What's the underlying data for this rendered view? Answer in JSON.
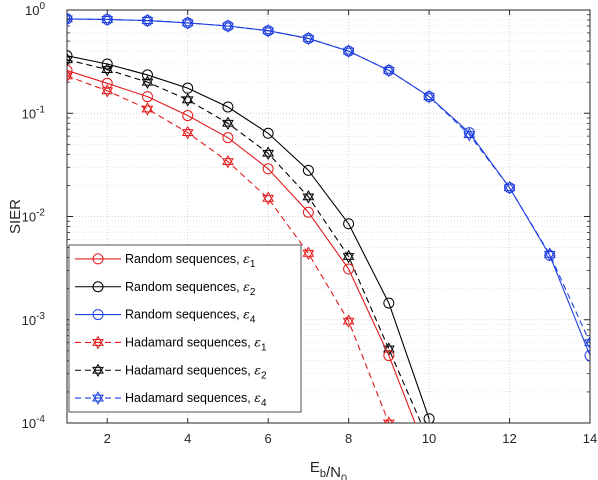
{
  "chart_data": {
    "type": "line",
    "xlabel": "E_b/N_0",
    "ylabel": "SIER",
    "xlim": [
      1,
      14
    ],
    "ylim": [
      0.0001,
      1
    ],
    "yscale": "log",
    "grid": "major and minor, dotted",
    "legend_placement": "bottom-left",
    "x_ticks": [
      2,
      4,
      6,
      8,
      10,
      12,
      14
    ],
    "y_ticks": [
      {
        "value": 0.0001,
        "base": "10",
        "exp": "-4"
      },
      {
        "value": 0.001,
        "base": "10",
        "exp": "-3"
      },
      {
        "value": 0.01,
        "base": "10",
        "exp": "-2"
      },
      {
        "value": 0.1,
        "base": "10",
        "exp": "-1"
      },
      {
        "value": 1,
        "base": "10",
        "exp": "0"
      }
    ],
    "series": [
      {
        "name": "Random sequences, ε1",
        "label_main": "Random sequences, ",
        "label_eps": "ε",
        "label_sub": "1",
        "color": "#e31a1c",
        "dash": "solid",
        "marker": "circle",
        "x": [
          1,
          2,
          3,
          4,
          5,
          6,
          7,
          8,
          9,
          9.65
        ],
        "y": [
          0.26,
          0.195,
          0.145,
          0.095,
          0.058,
          0.029,
          0.011,
          0.0031,
          0.00045,
          0.0001
        ],
        "marker_count": 9
      },
      {
        "name": "Random sequences, ε2",
        "label_main": "Random sequences, ",
        "label_eps": "ε",
        "label_sub": "2",
        "color": "#000000",
        "dash": "solid",
        "marker": "circle",
        "x": [
          1,
          2,
          3,
          4,
          5,
          6,
          7,
          8,
          9,
          10
        ],
        "y": [
          0.36,
          0.3,
          0.235,
          0.175,
          0.115,
          0.064,
          0.028,
          0.0085,
          0.00145,
          0.00011
        ],
        "marker_count": 10
      },
      {
        "name": "Random sequences, ε4",
        "label_main": "Random sequences, ",
        "label_eps": "ε",
        "label_sub": "4",
        "color": "#1f3fe0",
        "dash": "solid",
        "marker": "circle",
        "x": [
          1,
          2,
          3,
          4,
          5,
          6,
          7,
          8,
          9,
          10,
          11,
          12,
          13,
          14
        ],
        "y": [
          0.82,
          0.81,
          0.79,
          0.75,
          0.7,
          0.63,
          0.53,
          0.4,
          0.26,
          0.145,
          0.065,
          0.019,
          0.0042,
          0.00045
        ],
        "marker_count": 14
      },
      {
        "name": "Hadamard sequences, ε1",
        "label_main": "Hadamard sequences,  ",
        "label_eps": "ε",
        "label_sub": "1",
        "color": "#e31a1c",
        "dash": "dashed",
        "marker": "hexagram",
        "x": [
          1,
          2,
          3,
          4,
          5,
          6,
          7,
          8,
          9,
          9.2
        ],
        "y": [
          0.23,
          0.165,
          0.11,
          0.065,
          0.034,
          0.015,
          0.0044,
          0.00097,
          0.0001,
          7.5e-05
        ],
        "marker_count": 9
      },
      {
        "name": "Hadamard sequences, ε2",
        "label_main": "Hadamard sequences,  ",
        "label_eps": "ε",
        "label_sub": "2",
        "color": "#000000",
        "dash": "dashed",
        "marker": "hexagram",
        "x": [
          1,
          2,
          3,
          4,
          5,
          6,
          7,
          8,
          9,
          9.8
        ],
        "y": [
          0.33,
          0.265,
          0.2,
          0.135,
          0.08,
          0.041,
          0.0155,
          0.0041,
          0.00052,
          0.0001
        ],
        "marker_count": 9
      },
      {
        "name": "Hadamard sequences, ε4",
        "label_main": "Hadamard sequences,  ",
        "label_eps": "ε",
        "label_sub": "4",
        "color": "#1f3fe0",
        "dash": "dashed",
        "marker": "hexagram",
        "x": [
          1,
          2,
          3,
          4,
          5,
          6,
          7,
          8,
          9,
          10,
          11,
          12,
          13,
          14
        ],
        "y": [
          0.82,
          0.81,
          0.79,
          0.75,
          0.7,
          0.63,
          0.53,
          0.4,
          0.26,
          0.145,
          0.062,
          0.019,
          0.0043,
          0.0006
        ],
        "marker_count": 14
      }
    ]
  }
}
